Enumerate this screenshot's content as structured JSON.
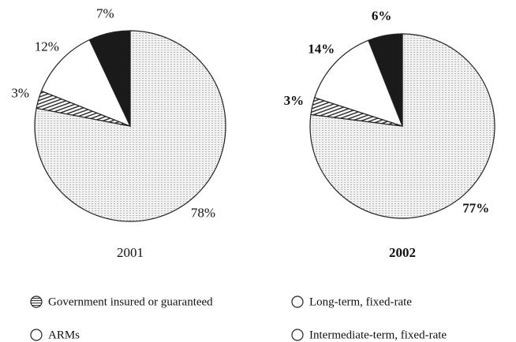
{
  "categories": [
    "Long-term, fixed-rate",
    "Intermediate-term, fixed-rate",
    "ARMs",
    "Government insured or guaranteed"
  ],
  "colors": [
    "#e6e6e6",
    "#cfcfcf",
    "#ffffff",
    "#1a1a1a"
  ],
  "chart_data": [
    {
      "type": "pie",
      "title": "2001",
      "values": [
        78,
        3,
        12,
        7
      ],
      "value_labels": [
        "78%",
        "3%",
        "12%",
        "7%"
      ]
    },
    {
      "type": "pie",
      "title": "2002",
      "values": [
        77,
        3,
        14,
        6
      ],
      "value_labels": [
        "77%",
        "3%",
        "14%",
        "6%"
      ]
    }
  ]
}
